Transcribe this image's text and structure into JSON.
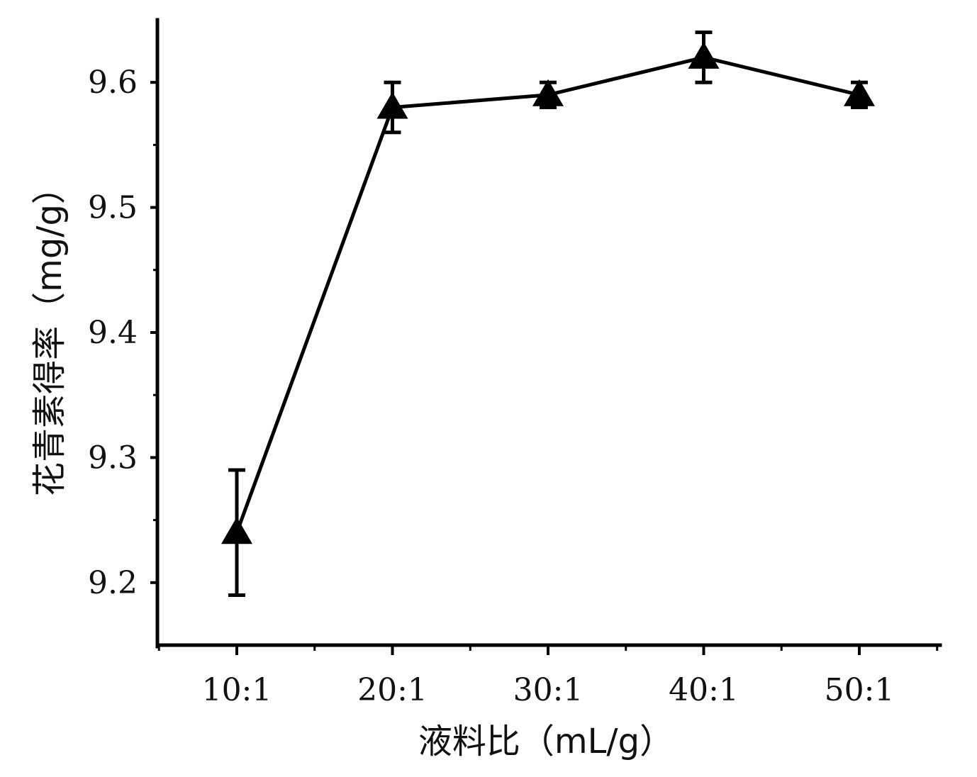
{
  "chart_data": {
    "type": "line",
    "title": "",
    "xlabel": "液料比（mL/g）",
    "ylabel": "花青素得率（mg/g）",
    "categories": [
      "10:1",
      "20:1",
      "30:1",
      "40:1",
      "50:1"
    ],
    "series": [
      {
        "values": [
          9.24,
          9.58,
          9.59,
          9.62,
          9.59
        ],
        "error": [
          0.05,
          0.02,
          0.01,
          0.02,
          0.01
        ],
        "marker": "triangle"
      }
    ],
    "ylim": [
      9.15,
      9.65
    ],
    "yticks": [
      9.2,
      9.3,
      9.4,
      9.5,
      9.6
    ],
    "ytick_labels": [
      "9.2",
      "9.3",
      "9.4",
      "9.5",
      "9.6"
    ],
    "grid": false,
    "legend": "none"
  },
  "colors": {
    "line": "#000000",
    "axis": "#000000",
    "text": "#111111",
    "background": "#ffffff"
  }
}
